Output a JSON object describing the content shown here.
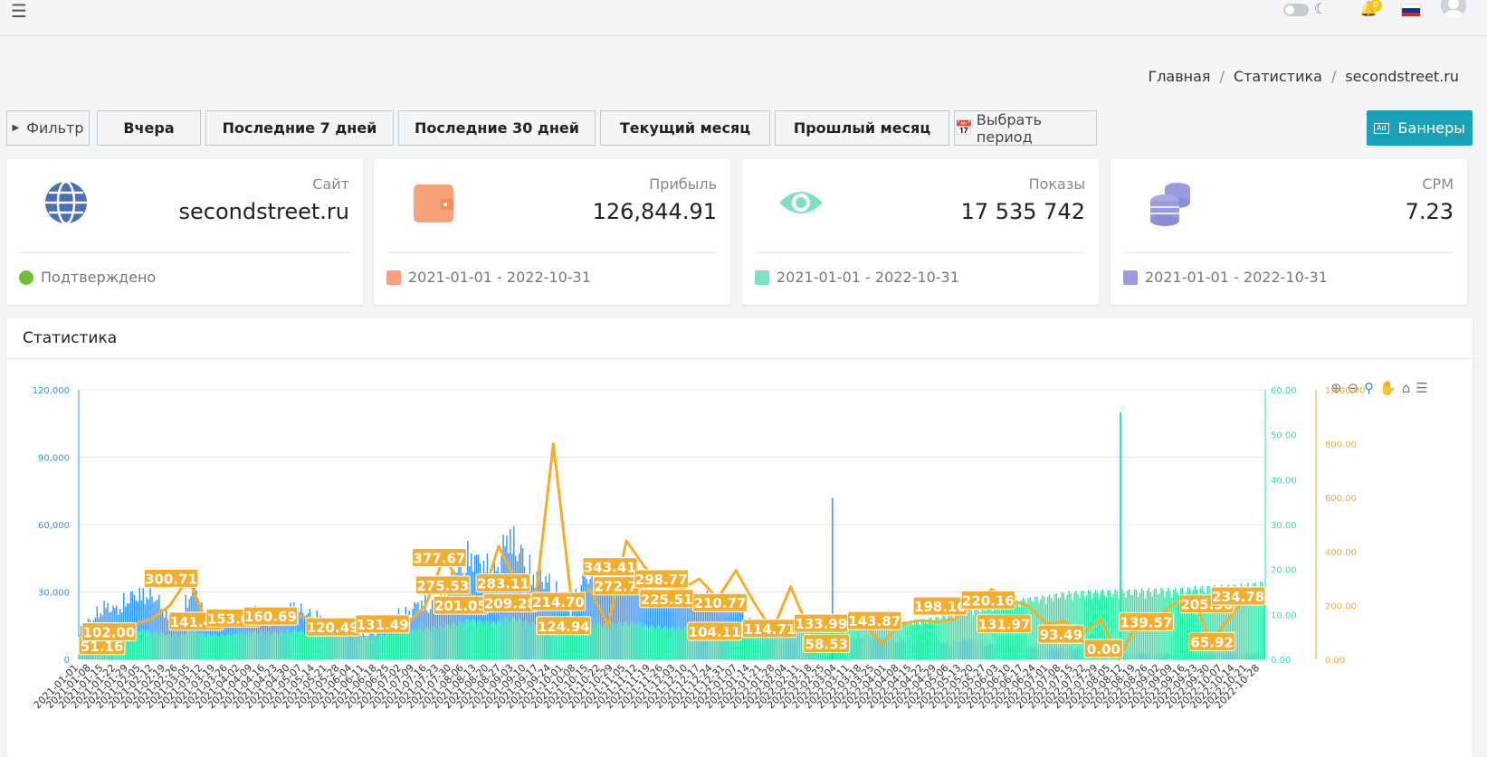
{
  "topbar": {
    "notifications_count": "0",
    "lang_flag_colors": [
      "#ffffff",
      "#0039a6",
      "#d52b1e"
    ]
  },
  "breadcrumb": [
    "Главная",
    "Статистика",
    "secondstreet.ru"
  ],
  "filter": {
    "toggle_label": "Фильтр",
    "periods": [
      "Вчера",
      "Последние 7 дней",
      "Последние 30 дней",
      "Текущий месяц",
      "Прошлый месяц"
    ],
    "custom_period_label": "Выбрать период",
    "banners_label": "Баннеры",
    "banners_ad_icon_text": "Ad"
  },
  "cards": [
    {
      "label": "Сайт",
      "value": "secondstreet.ru",
      "footer": "Подтверждено",
      "icon": "globe-icon",
      "color": "#4a6fb5"
    },
    {
      "label": "Прибыль",
      "value": "126,844.91",
      "footer": "2021-01-01 - 2022-10-31",
      "icon": "wallet-icon",
      "color": "#f7a27b"
    },
    {
      "label": "Показы",
      "value": "17 535 742",
      "footer": "2021-01-01 - 2022-10-31",
      "icon": "eye-icon",
      "color": "#7fdfc4"
    },
    {
      "label": "CPM",
      "value": "7.23",
      "footer": "2021-01-01 - 2022-10-31",
      "icon": "coins-icon",
      "color": "#9a9be0"
    }
  ],
  "stats": {
    "title": "Статистика"
  },
  "chart_data": {
    "type": "bar",
    "series": [
      {
        "color": "#2e93fa",
        "axis": "left",
        "ylim": [
          0,
          120000
        ]
      },
      {
        "color": "#26e7a6",
        "axis": "right1",
        "ylim": [
          0,
          60
        ]
      },
      {
        "color": "#f5ad2a",
        "axis": "right2",
        "type": "line",
        "ylim": [
          0,
          1000
        ]
      }
    ],
    "y_left_ticks": [
      "0",
      "30,000",
      "60,000",
      "90,000",
      "120,000"
    ],
    "y_right1_ticks": [
      "0.00",
      "10.00",
      "20.00",
      "30.00",
      "40.00",
      "50.00",
      "60.00"
    ],
    "y_right2_ticks": [
      "0.00",
      "200.00",
      "400.00",
      "600.00",
      "800.00",
      "1,000.00"
    ],
    "x_tick_labels": [
      "2021-01-01",
      "2021-01-08",
      "2021-01-15",
      "2021-01-22",
      "2021-01-29",
      "2021-02-05",
      "2021-02-12",
      "2021-02-19",
      "2021-02-26",
      "2021-03-05",
      "2021-03-12",
      "2021-03-19",
      "2021-03-26",
      "2021-04-02",
      "2021-04-09",
      "2021-04-16",
      "2021-04-23",
      "2021-04-30",
      "2021-05-07",
      "2021-05-14",
      "2021-05-21",
      "2021-05-28",
      "2021-06-04",
      "2021-06-11",
      "2021-06-18",
      "2021-06-25",
      "2021-07-02",
      "2021-07-09",
      "2021-07-16",
      "2021-07-23",
      "2021-07-30",
      "2021-08-06",
      "2021-08-13",
      "2021-08-20",
      "2021-08-27",
      "2021-09-03",
      "2021-09-10",
      "2021-09-17",
      "2021-09-24",
      "2021-10-01",
      "2021-10-08",
      "2021-10-15",
      "2021-10-22",
      "2021-10-29",
      "2021-11-05",
      "2021-11-12",
      "2021-11-19",
      "2021-11-26",
      "2021-12-03",
      "2021-12-10",
      "2021-12-17",
      "2021-12-24",
      "2021-12-31",
      "2022-01-07",
      "2022-01-14",
      "2022-01-21",
      "2022-01-28",
      "2022-02-04",
      "2022-02-11",
      "2022-02-18",
      "2022-02-25",
      "2022-03-04",
      "2022-03-11",
      "2022-03-18",
      "2022-03-25",
      "2022-04-01",
      "2022-04-08",
      "2022-04-15",
      "2022-04-22",
      "2022-04-29",
      "2022-05-06",
      "2022-05-13",
      "2022-05-20",
      "2022-05-27",
      "2022-06-03",
      "2022-06-10",
      "2022-06-17",
      "2022-06-24",
      "2022-07-01",
      "2022-07-08",
      "2022-07-15",
      "2022-07-22",
      "2022-07-29",
      "2022-08-05",
      "2022-08-12",
      "2022-08-19",
      "2022-08-26",
      "2022-09-02",
      "2022-09-09",
      "2022-09-16",
      "2022-09-23",
      "2022-09-30",
      "2022-10-07",
      "2022-10-14",
      "2022-10-21",
      "2022-10-28"
    ],
    "blue_weekly": [
      15000,
      21000,
      28000,
      26000,
      33000,
      34000,
      33000,
      23000,
      20000,
      40000,
      22000,
      18000,
      22000,
      22000,
      25000,
      20000,
      21000,
      28000,
      24000,
      22000,
      20000,
      15000,
      14000,
      13000,
      16000,
      23000,
      24000,
      30000,
      28000,
      35000,
      46000,
      55000,
      50000,
      45000,
      66000,
      56000,
      44000,
      42000,
      34000,
      24000,
      45000,
      43000,
      40000,
      46000,
      45000,
      36000,
      34000,
      28000,
      34000,
      30000,
      31000,
      29000,
      30000,
      20000,
      18000,
      18000,
      17000,
      18000,
      16000,
      18000,
      20000,
      12000,
      12000,
      12000,
      10000,
      10000,
      11000,
      10000,
      10000,
      8000,
      11000,
      10000,
      8000,
      8000,
      8000,
      7000,
      6000,
      6000,
      6000,
      6000,
      5000,
      5000,
      4000,
      3000,
      3000,
      3000,
      3000,
      3000,
      3000,
      3000,
      3000,
      3000,
      3000,
      3000,
      3000
    ],
    "teal_weekly": [
      5.2,
      5.6,
      6.3,
      6.1,
      6.6,
      6.7,
      6.4,
      5.7,
      5.7,
      6.7,
      5.8,
      5.5,
      5.8,
      6.1,
      6.4,
      6.1,
      6.3,
      6.7,
      6.4,
      6.2,
      6.1,
      5.5,
      5.4,
      5.3,
      5.6,
      6.2,
      6.5,
      7.1,
      7.3,
      7.8,
      8.5,
      9.2,
      8.8,
      8.5,
      9.6,
      9.1,
      8.4,
      8.2,
      7.6,
      6.5,
      8.1,
      8.1,
      8.3,
      8.6,
      8.6,
      7.7,
      7.6,
      7.2,
      7.5,
      7.3,
      7.5,
      7.6,
      7.8,
      7.3,
      7.2,
      7.4,
      7.2,
      7.6,
      7.4,
      7.5,
      7.3,
      7.5,
      7.7,
      7.9,
      8.2,
      8.5,
      8.7,
      9.1,
      9.5,
      10.2,
      10.8,
      11.5,
      12.1,
      12.6,
      13.2,
      13.8,
      14.2,
      14.6,
      15.1,
      15.4,
      15.5,
      15.6,
      15.6,
      15.7,
      15.8,
      15.9,
      16,
      16,
      16.2,
      16.4,
      16.6,
      16.7,
      16.9,
      17.2,
      17.5
    ],
    "teal_spike": {
      "date": "2022-08-10",
      "value": 55
    },
    "blue_spike": {
      "date": "2022-03-01",
      "value": 72000
    },
    "labels": [
      {
        "date": "2021-01-01",
        "value": "51.16"
      },
      {
        "date": "2021-01-18",
        "value": "102.00"
      },
      {
        "date": "2021-02-22",
        "value": "300.71"
      },
      {
        "date": "2021-03-08",
        "value": "141.48"
      },
      {
        "date": "2021-03-29",
        "value": "153.08"
      },
      {
        "date": "2021-04-19",
        "value": "160.69"
      },
      {
        "date": "2021-05-24",
        "value": "120.49"
      },
      {
        "date": "2021-06-21",
        "value": "131.49"
      },
      {
        "date": "2021-07-23",
        "value": "377.67"
      },
      {
        "date": "2021-07-25",
        "value": "275.53"
      },
      {
        "date": "2021-08-04",
        "value": "201.05"
      },
      {
        "date": "2021-08-28",
        "value": "283.11"
      },
      {
        "date": "2021-09-01",
        "value": "209.28"
      },
      {
        "date": "2021-09-28",
        "value": "214.70"
      },
      {
        "date": "2021-10-01",
        "value": "124.94"
      },
      {
        "date": "2021-10-27",
        "value": "343.41"
      },
      {
        "date": "2021-11-02",
        "value": "272.79"
      },
      {
        "date": "2021-11-25",
        "value": "298.77"
      },
      {
        "date": "2021-11-28",
        "value": "225.51"
      },
      {
        "date": "2021-12-28",
        "value": "210.77"
      },
      {
        "date": "2021-12-25",
        "value": "104.11"
      },
      {
        "date": "2022-01-25",
        "value": "114.71"
      },
      {
        "date": "2022-02-23",
        "value": "133.99"
      },
      {
        "date": "2022-02-26",
        "value": "58.53"
      },
      {
        "date": "2022-03-25",
        "value": "143.87"
      },
      {
        "date": "2022-05-01",
        "value": "198.10"
      },
      {
        "date": "2022-05-28",
        "value": "220.16"
      },
      {
        "date": "2022-06-06",
        "value": "131.97"
      },
      {
        "date": "2022-07-08",
        "value": "93.49"
      },
      {
        "date": "2022-08-01",
        "value": "0.00"
      },
      {
        "date": "2022-08-25",
        "value": "139.57"
      },
      {
        "date": "2022-09-28",
        "value": "205.56"
      },
      {
        "date": "2022-10-01",
        "value": "65.92"
      },
      {
        "date": "2022-10-28",
        "value": "234.78"
      }
    ],
    "orange_line": [
      51.16,
      102,
      90,
      130,
      150,
      200,
      300.71,
      141.48,
      120,
      153.08,
      130,
      140,
      160.69,
      150,
      130,
      120.49,
      110,
      125,
      131.49,
      200,
      377.67,
      275.53,
      201.05,
      420,
      283.11,
      209.28,
      800,
      214.7,
      260,
      124.94,
      440,
      343.41,
      272.79,
      260,
      298.77,
      225.51,
      330,
      210.77,
      104.11,
      270,
      110,
      114.71,
      120,
      133.99,
      58.53,
      130,
      143.87,
      140,
      150,
      198.1,
      260,
      220.16,
      200,
      131.97,
      140,
      93.49,
      150,
      0,
      139.57,
      150,
      205.56,
      240,
      65.92,
      150,
      234.78,
      260
    ]
  }
}
